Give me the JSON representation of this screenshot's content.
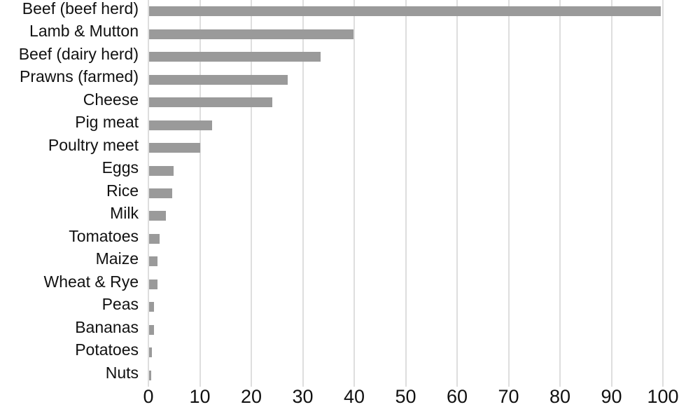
{
  "chart_data": {
    "type": "bar",
    "orientation": "horizontal",
    "title": "",
    "xlabel": "",
    "ylabel": "",
    "categories": [
      "Beef (beef herd)",
      "Lamb & Mutton",
      "Beef (dairy herd)",
      "Prawns (farmed)",
      "Cheese",
      "Pig meat",
      "Poultry meet",
      "Eggs",
      "Rice",
      "Milk",
      "Tomatoes",
      "Maize",
      "Wheat & Rye",
      "Peas",
      "Bananas",
      "Potatoes",
      "Nuts"
    ],
    "values": [
      99.5,
      39.7,
      33.3,
      26.9,
      23.9,
      12.3,
      9.9,
      4.7,
      4.5,
      3.2,
      2.1,
      1.7,
      1.6,
      1.0,
      0.9,
      0.5,
      0.4
    ],
    "xlim": [
      0,
      100
    ],
    "x_ticks": [
      "0",
      "10",
      "20",
      "30",
      "40",
      "50",
      "60",
      "70",
      "80",
      "90",
      "100"
    ],
    "grid": "vertical",
    "legend": "none",
    "colors": {
      "bar": "#9a9a9a",
      "gridline": "#dedede",
      "text": "#111111",
      "background": "#ffffff"
    }
  }
}
